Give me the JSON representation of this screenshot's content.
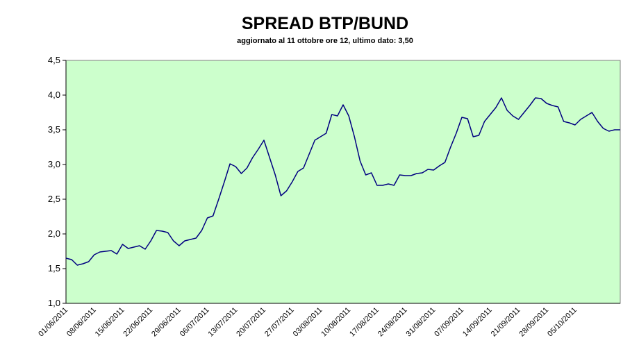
{
  "chart_data": {
    "type": "line",
    "title": "SPREAD BTP/BUND",
    "subtitle": "aggiornato al 11 ottobre ore 12, ultimo dato: 3,50",
    "categories": [
      "01/06/2011",
      null,
      null,
      null,
      null,
      "08/06/2011",
      null,
      null,
      null,
      null,
      "15/06/2011",
      null,
      null,
      null,
      null,
      "22/06/2011",
      null,
      null,
      null,
      null,
      "29/06/2011",
      null,
      null,
      null,
      null,
      "06/07/2011",
      null,
      null,
      null,
      null,
      "13/07/2011",
      null,
      null,
      null,
      null,
      "20/07/2011",
      null,
      null,
      null,
      null,
      "27/07/2011",
      null,
      null,
      null,
      null,
      "03/08/2011",
      null,
      null,
      null,
      null,
      "10/08/2011",
      null,
      null,
      null,
      null,
      "17/08/2011",
      null,
      null,
      null,
      null,
      "24/08/2011",
      null,
      null,
      null,
      null,
      "31/08/2011",
      null,
      null,
      null,
      null,
      "07/09/2011",
      null,
      null,
      null,
      null,
      "14/09/2011",
      null,
      null,
      null,
      null,
      "21/09/2011",
      null,
      null,
      null,
      null,
      "28/09/2011",
      null,
      null,
      null,
      null,
      "05/10/2011",
      null,
      null,
      null,
      null,
      null,
      null,
      null,
      null
    ],
    "values": [
      1.65,
      1.63,
      1.55,
      1.57,
      1.6,
      1.7,
      1.74,
      1.75,
      1.76,
      1.71,
      1.85,
      1.79,
      1.81,
      1.83,
      1.78,
      1.9,
      2.05,
      2.04,
      2.02,
      1.9,
      1.83,
      1.9,
      1.92,
      1.94,
      2.05,
      2.23,
      2.26,
      2.5,
      2.75,
      3.01,
      2.97,
      2.87,
      2.95,
      3.1,
      3.22,
      3.35,
      3.1,
      2.85,
      2.55,
      2.62,
      2.75,
      2.9,
      2.95,
      3.15,
      3.35,
      3.4,
      3.45,
      3.72,
      3.7,
      3.86,
      3.7,
      3.4,
      3.05,
      2.85,
      2.88,
      2.7,
      2.7,
      2.72,
      2.7,
      2.85,
      2.84,
      2.84,
      2.87,
      2.88,
      2.93,
      2.92,
      2.98,
      3.03,
      3.25,
      3.45,
      3.68,
      3.66,
      3.4,
      3.42,
      3.62,
      3.72,
      3.82,
      3.96,
      3.78,
      3.7,
      3.65,
      3.75,
      3.85,
      3.96,
      3.95,
      3.88,
      3.85,
      3.83,
      3.62,
      3.6,
      3.57,
      3.65,
      3.7,
      3.75,
      3.62,
      3.52,
      3.48,
      3.5,
      3.5
    ],
    "color": "#000080",
    "ylim": [
      1,
      4.5
    ],
    "yticks": [
      {
        "value": 1,
        "label": "1,0"
      },
      {
        "value": 1.5,
        "label": "1,5"
      },
      {
        "value": 2,
        "label": "2,0"
      },
      {
        "value": 2.5,
        "label": "2,5"
      },
      {
        "value": 3,
        "label": "3,0"
      },
      {
        "value": 3.5,
        "label": "3,5"
      },
      {
        "value": 4,
        "label": "4,0"
      },
      {
        "value": 4.5,
        "label": "4,5"
      }
    ],
    "plot_background": "#ccffcc"
  }
}
